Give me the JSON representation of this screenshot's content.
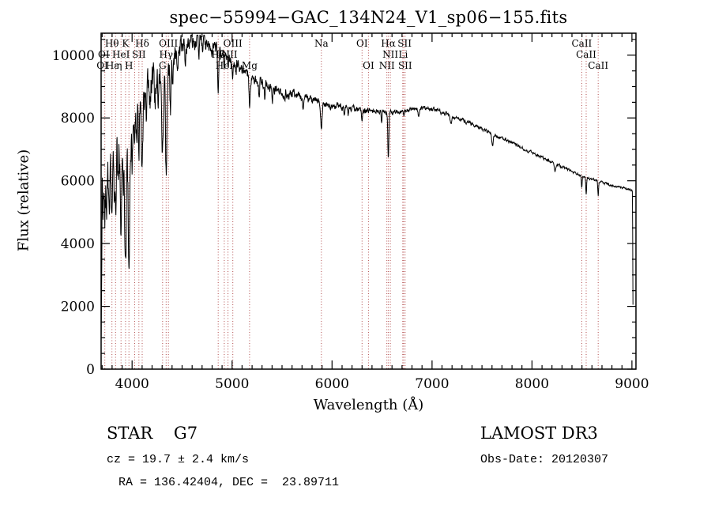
{
  "plot": {
    "title": "spec−55994−GAC_134N24_V1_sp06−155.fits",
    "xlabel": "Wavelength (Å)",
    "ylabel": "Flux (relative)"
  },
  "annotations": {
    "object_class": "STAR    G7",
    "survey": "LAMOST DR3",
    "velocity": "cz = 19.7 ± 2.4 km/s",
    "obs_date": "Obs-Date: 20120307",
    "coordinates": "RA = 136.42404, DEC =  23.89711"
  },
  "chart_data": {
    "type": "line",
    "title": "spec−55994−GAC_134N24_V1_sp06−155.fits",
    "xlabel": "Wavelength (Å)",
    "ylabel": "Flux (relative)",
    "xlim": [
      3690,
      9040
    ],
    "ylim": [
      0,
      10700
    ],
    "x_ticks": [
      4000,
      5000,
      6000,
      7000,
      8000,
      9000
    ],
    "y_ticks": [
      0,
      2000,
      4000,
      6000,
      8000,
      10000
    ],
    "x_minor_step": 100,
    "y_minor_step": 500,
    "grid": false,
    "line_color": "#000000",
    "axis_color": "#000000",
    "feature_line_color": "#b45050",
    "noise_seed": 20120307,
    "envelope_points": [
      [
        3690,
        100
      ],
      [
        3700,
        5200
      ],
      [
        3720,
        6200
      ],
      [
        3760,
        6600
      ],
      [
        3800,
        6900
      ],
      [
        3850,
        7100
      ],
      [
        3900,
        7200
      ],
      [
        3950,
        7300
      ],
      [
        4000,
        7900
      ],
      [
        4050,
        8300
      ],
      [
        4100,
        8700
      ],
      [
        4150,
        9000
      ],
      [
        4200,
        9200
      ],
      [
        4250,
        9300
      ],
      [
        4300,
        9450
      ],
      [
        4350,
        9650
      ],
      [
        4400,
        9900
      ],
      [
        4450,
        10100
      ],
      [
        4500,
        10300
      ],
      [
        4550,
        10400
      ],
      [
        4600,
        10450
      ],
      [
        4650,
        10450
      ],
      [
        4700,
        10400
      ],
      [
        4750,
        10350
      ],
      [
        4800,
        10250
      ],
      [
        4850,
        10150
      ],
      [
        4900,
        10050
      ],
      [
        4950,
        9950
      ],
      [
        5000,
        9850
      ],
      [
        5050,
        9700
      ],
      [
        5100,
        9550
      ],
      [
        5150,
        9450
      ],
      [
        5200,
        9300
      ],
      [
        5250,
        9200
      ],
      [
        5300,
        9100
      ],
      [
        5350,
        9000
      ],
      [
        5400,
        8950
      ],
      [
        5450,
        8900
      ],
      [
        5500,
        8850
      ],
      [
        5600,
        8750
      ],
      [
        5700,
        8650
      ],
      [
        5800,
        8550
      ],
      [
        5900,
        8450
      ],
      [
        6000,
        8400
      ],
      [
        6100,
        8350
      ],
      [
        6200,
        8300
      ],
      [
        6300,
        8250
      ],
      [
        6400,
        8220
      ],
      [
        6500,
        8200
      ],
      [
        6600,
        8180
      ],
      [
        6700,
        8220
      ],
      [
        6800,
        8280
      ],
      [
        6900,
        8300
      ],
      [
        7000,
        8280
      ],
      [
        7100,
        8180
      ],
      [
        7200,
        8050
      ],
      [
        7300,
        7920
      ],
      [
        7400,
        7800
      ],
      [
        7500,
        7650
      ],
      [
        7600,
        7500
      ],
      [
        7700,
        7350
      ],
      [
        7800,
        7200
      ],
      [
        7900,
        7050
      ],
      [
        8000,
        6900
      ],
      [
        8100,
        6750
      ],
      [
        8200,
        6600
      ],
      [
        8300,
        6450
      ],
      [
        8400,
        6300
      ],
      [
        8500,
        6150
      ],
      [
        8600,
        6050
      ],
      [
        8700,
        5950
      ],
      [
        8800,
        5850
      ],
      [
        8900,
        5780
      ],
      [
        8980,
        5720
      ],
      [
        9006,
        5660
      ],
      [
        9009,
        2000
      ],
      [
        9012,
        2150
      ]
    ],
    "absorption_dips": [
      [
        3727,
        1500,
        6
      ],
      [
        3750,
        1200,
        7
      ],
      [
        3770,
        1000,
        5
      ],
      [
        3798,
        2400,
        7
      ],
      [
        3820,
        1200,
        5
      ],
      [
        3835,
        2700,
        7
      ],
      [
        3860,
        1500,
        5
      ],
      [
        3889,
        3000,
        8
      ],
      [
        3910,
        1500,
        5
      ],
      [
        3934,
        4300,
        8
      ],
      [
        3968,
        4100,
        8
      ],
      [
        4000,
        1200,
        5
      ],
      [
        4026,
        1400,
        5
      ],
      [
        4045,
        1000,
        4
      ],
      [
        4068,
        1200,
        5
      ],
      [
        4101,
        2800,
        7
      ],
      [
        4144,
        1000,
        5
      ],
      [
        4180,
        800,
        5
      ],
      [
        4227,
        1100,
        5
      ],
      [
        4260,
        800,
        4
      ],
      [
        4305,
        2700,
        8
      ],
      [
        4340,
        3300,
        7
      ],
      [
        4383,
        1500,
        5
      ],
      [
        4405,
        900,
        4
      ],
      [
        4455,
        800,
        5
      ],
      [
        4530,
        600,
        5
      ],
      [
        4668,
        500,
        5
      ],
      [
        4861,
        1400,
        6
      ],
      [
        4922,
        600,
        4
      ],
      [
        4959,
        400,
        4
      ],
      [
        5007,
        400,
        4
      ],
      [
        5041,
        400,
        4
      ],
      [
        5175,
        1000,
        7
      ],
      [
        5270,
        600,
        5
      ],
      [
        5329,
        400,
        4
      ],
      [
        5404,
        350,
        4
      ],
      [
        5530,
        300,
        4
      ],
      [
        5711,
        300,
        4
      ],
      [
        5893,
        750,
        6
      ],
      [
        6122,
        300,
        4
      ],
      [
        6162,
        250,
        4
      ],
      [
        6300,
        250,
        4
      ],
      [
        6495,
        350,
        4
      ],
      [
        6563,
        1550,
        5
      ],
      [
        6717,
        200,
        4
      ],
      [
        6867,
        300,
        6
      ],
      [
        7190,
        250,
        8
      ],
      [
        7605,
        400,
        7
      ],
      [
        8230,
        250,
        7
      ],
      [
        8498,
        400,
        4
      ],
      [
        8542,
        550,
        4
      ],
      [
        8662,
        480,
        4
      ]
    ],
    "noise_profile": [
      [
        3690,
        1500
      ],
      [
        3800,
        1300
      ],
      [
        3950,
        1100
      ],
      [
        4100,
        900
      ],
      [
        4300,
        700
      ],
      [
        4500,
        500
      ],
      [
        4700,
        420
      ],
      [
        5000,
        330
      ],
      [
        5400,
        250
      ],
      [
        5900,
        180
      ],
      [
        6300,
        140
      ],
      [
        6700,
        110
      ],
      [
        7200,
        90
      ],
      [
        8000,
        70
      ],
      [
        8700,
        60
      ],
      [
        9012,
        50
      ]
    ],
    "feature_lines": [
      3727,
      3798,
      3835,
      3889,
      3934,
      3968,
      4026,
      4068,
      4101,
      4305,
      4340,
      4363,
      4861,
      4922,
      4959,
      5007,
      5175,
      5893,
      6300,
      6364,
      6548,
      6563,
      6583,
      6707,
      6716,
      6731,
      8498,
      8542,
      8662
    ],
    "feature_labels": [
      {
        "text": "Hθ",
        "row": 1,
        "wl": 3798
      },
      {
        "text": "K",
        "row": 1,
        "wl": 3934
      },
      {
        "text": "Hδ",
        "row": 1,
        "wl": 4101
      },
      {
        "text": "OIII",
        "row": 1,
        "wl": 4363
      },
      {
        "text": "OIII",
        "row": 1,
        "wl": 5007
      },
      {
        "text": "Na",
        "row": 1,
        "wl": 5893
      },
      {
        "text": "OI",
        "row": 1,
        "wl": 6300
      },
      {
        "text": "Hα",
        "row": 1,
        "wl": 6563
      },
      {
        "text": "SII",
        "row": 1,
        "wl": 6725
      },
      {
        "text": "CaII",
        "row": 1,
        "wl": 8498
      },
      {
        "text": "OI",
        "row": 2,
        "wl": 3716
      },
      {
        "text": "HeI",
        "row": 2,
        "wl": 3889
      },
      {
        "text": "SII",
        "row": 2,
        "wl": 4068
      },
      {
        "text": "Hγ",
        "row": 2,
        "wl": 4340
      },
      {
        "text": "Hβ",
        "row": 2,
        "wl": 4861
      },
      {
        "text": "OIII",
        "row": 2,
        "wl": 4959
      },
      {
        "text": "NII",
        "row": 2,
        "wl": 6583
      },
      {
        "text": "Li",
        "row": 2,
        "wl": 6712
      },
      {
        "text": "CaII",
        "row": 2,
        "wl": 8542
      },
      {
        "text": "OI",
        "row": 3,
        "wl": 3702
      },
      {
        "text": "Hε",
        "row": 3,
        "wl": 3802
      },
      {
        "text": "η",
        "row": 3,
        "wl": 3870
      },
      {
        "text": "H",
        "row": 3,
        "wl": 3968
      },
      {
        "text": "G",
        "row": 3,
        "wl": 4305
      },
      {
        "text": "HeI",
        "row": 3,
        "wl": 4922
      },
      {
        "text": "Mg",
        "row": 3,
        "wl": 5175
      },
      {
        "text": "OI",
        "row": 3,
        "wl": 6364
      },
      {
        "text": "NII",
        "row": 3,
        "wl": 6548
      },
      {
        "text": "SII",
        "row": 3,
        "wl": 6731
      },
      {
        "text": "CaII",
        "row": 3,
        "wl": 8662
      }
    ]
  }
}
